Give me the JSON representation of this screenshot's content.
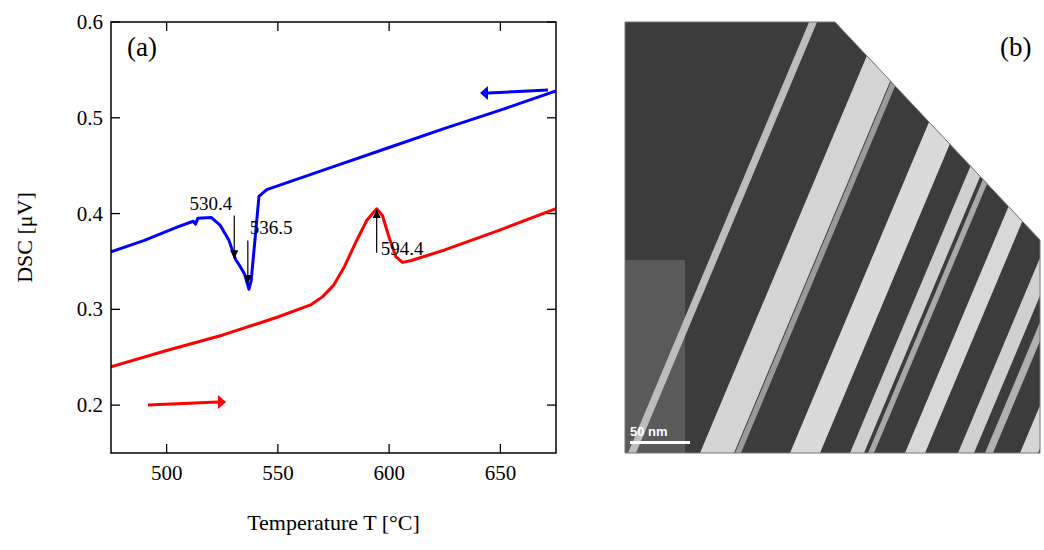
{
  "chart_data": {
    "type": "line",
    "panel_label": "(a)",
    "x_label": "Temperature  T [°C]",
    "y_label": "DSC [μV]",
    "xlim": [
      475,
      675
    ],
    "xticks": [
      500,
      550,
      600,
      650
    ],
    "ylim": [
      0.15,
      0.6
    ],
    "yticks": [
      0.2,
      0.3,
      0.4,
      0.5,
      0.6
    ],
    "series": [
      {
        "color": "#0000ff",
        "x": [
          475,
          490,
          505,
          512,
          513,
          514,
          520,
          524,
          528,
          531,
          533,
          535,
          537,
          538,
          540,
          541.5,
          545,
          575,
          600,
          625,
          650,
          675
        ],
        "values": [
          0.36,
          0.372,
          0.386,
          0.392,
          0.389,
          0.395,
          0.396,
          0.388,
          0.372,
          0.352,
          0.345,
          0.337,
          0.321,
          0.33,
          0.38,
          0.418,
          0.425,
          0.449,
          0.469,
          0.489,
          0.508,
          0.528
        ]
      },
      {
        "color": "#ff0000",
        "x": [
          475,
          500,
          525,
          550,
          565,
          570,
          575,
          580,
          585,
          590,
          594.4,
          597,
          600,
          603,
          606,
          610,
          625,
          650,
          675
        ],
        "values": [
          0.24,
          0.257,
          0.273,
          0.292,
          0.305,
          0.313,
          0.325,
          0.345,
          0.37,
          0.393,
          0.405,
          0.398,
          0.375,
          0.355,
          0.349,
          0.351,
          0.362,
          0.383,
          0.405
        ]
      }
    ],
    "annotations": [
      {
        "text": "530.4",
        "x": 530.4,
        "y": 0.352
      },
      {
        "text": "536.5",
        "x": 536.5,
        "y": 0.326
      },
      {
        "text": "594.4",
        "x": 594.4,
        "y": 0.405
      }
    ]
  },
  "image": {
    "panel_label": "(b)",
    "scale_bar": "50 nm"
  }
}
